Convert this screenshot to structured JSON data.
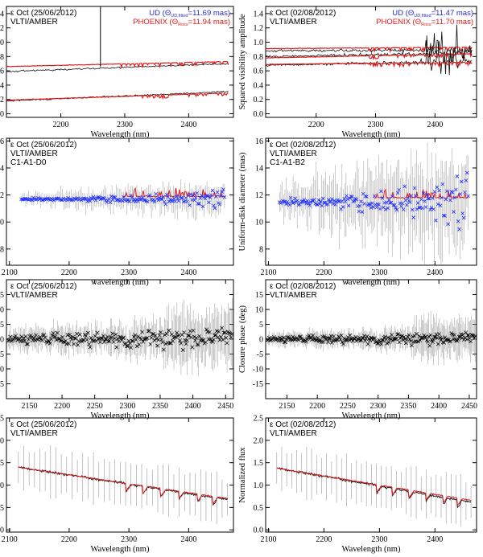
{
  "chart_data": [
    {
      "id": "vis-2012-06-25",
      "type": "line",
      "star_label": "ε Oct (25/06/2012)",
      "instrument": "VLTI/AMBER",
      "legend": [
        {
          "text": "UD (Θ",
          "sub": "UD,fitted",
          "tail": "=11.69 mas)",
          "color": "#2a2ad6"
        },
        {
          "text": "PHOENIX (Θ",
          "sub": "Ross",
          "tail": "=11.94 mas)",
          "color": "#e01818"
        }
      ],
      "xlabel": "Wavelength (nm)",
      "ylabel": "Squared visibility amplitude",
      "xlim": [
        2115,
        2470
      ],
      "ylim": [
        -0.05,
        1.5
      ],
      "xticks": [
        "2200",
        "2300",
        "2400"
      ],
      "yticks": [
        "0.0",
        "0.2",
        "0.4",
        "0.6",
        "0.8",
        "1.0",
        "1.2",
        "1.4"
      ],
      "series": [
        {
          "name": "baseline 1 (data)",
          "start": 0.59,
          "end": 0.7,
          "color": "black"
        },
        {
          "name": "baseline 1 (model)",
          "start": 0.66,
          "end": 0.73,
          "color": "red"
        },
        {
          "name": "baseline 2 (data)",
          "start": 0.18,
          "end": 0.31,
          "color": "black"
        },
        {
          "name": "baseline 2 (model)",
          "start": 0.19,
          "end": 0.29,
          "color": "red"
        }
      ],
      "spike": {
        "x": 2262,
        "y": 1.5
      }
    },
    {
      "id": "vis-2012-08-02",
      "type": "line",
      "star_label": "ε Oct (02/08/2012)",
      "instrument": "VLTI/AMBER",
      "legend": [
        {
          "text": "UD (Θ",
          "sub": "UD,fitted",
          "tail": "=11.47 mas)",
          "color": "#2a2ad6"
        },
        {
          "text": "PHOENIX (Θ",
          "sub": "Ross",
          "tail": "=11.70 mas)",
          "color": "#e01818"
        }
      ],
      "xlabel": "Wavelength (nm)",
      "ylabel": "Squared visibility amplitude",
      "xlim": [
        2115,
        2470
      ],
      "ylim": [
        -0.05,
        1.5
      ],
      "xticks": [
        "2200",
        "2300",
        "2400"
      ],
      "yticks": [
        "0.0",
        "0.2",
        "0.4",
        "0.6",
        "0.8",
        "1.0",
        "1.2",
        "1.4"
      ],
      "series": [
        {
          "name": "baseline 1 (data)",
          "start": 0.88,
          "end": 0.89,
          "color": "black"
        },
        {
          "name": "baseline 1 (model)",
          "start": 0.91,
          "end": 0.93,
          "color": "red"
        },
        {
          "name": "baseline 2 (data)",
          "start": 0.8,
          "end": 0.85,
          "color": "black"
        },
        {
          "name": "baseline 2 (model)",
          "start": 0.78,
          "end": 0.84,
          "color": "red"
        },
        {
          "name": "baseline 3 (data)",
          "start": 0.68,
          "end": 0.73,
          "color": "black"
        },
        {
          "name": "baseline 3 (model)",
          "start": 0.69,
          "end": 0.72,
          "color": "red"
        }
      ]
    },
    {
      "id": "ud-2012-06-25",
      "type": "scatter",
      "star_label": "ε Oct (25/06/2012)",
      "instrument": "VLTI/AMBER",
      "config": "C1-A1-D0",
      "xlabel": "wavelength (nm)",
      "ylabel": "Uniform-disk diameter (mas)",
      "xlim": [
        2095,
        2475
      ],
      "ylim": [
        6.8,
        16.2
      ],
      "xticks": [
        "2100",
        "2200",
        "2300",
        "2400"
      ],
      "yticks": [
        "8",
        "10",
        "12",
        "14",
        "16"
      ],
      "series": [
        {
          "name": "UD diameter",
          "x_from": 2120,
          "x_to": 2460,
          "level": 11.7,
          "scatter": 0.4,
          "color": "blue"
        },
        {
          "name": "PHOENIX",
          "x_from": 2290,
          "x_to": 2460,
          "level": 11.9,
          "color": "red"
        }
      ]
    },
    {
      "id": "ud-2012-08-02",
      "type": "scatter",
      "star_label": "ε Oct (02/08/2012)",
      "instrument": "VLTI/AMBER",
      "config": "C1-A1-B2",
      "xlabel": "wavelength (nm)",
      "ylabel": "Uniform-disk diameter (mas)",
      "xlim": [
        2095,
        2475
      ],
      "ylim": [
        6.8,
        16.2
      ],
      "xticks": [
        "2100",
        "2200",
        "2300",
        "2400"
      ],
      "yticks": [
        "8",
        "10",
        "12",
        "14",
        "16"
      ],
      "series": [
        {
          "name": "UD diameter",
          "x_from": 2120,
          "x_to": 2460,
          "level": 11.5,
          "scatter": 1.2,
          "color": "blue"
        },
        {
          "name": "PHOENIX",
          "x_from": 2290,
          "x_to": 2460,
          "level": 11.8,
          "color": "red"
        }
      ]
    },
    {
      "id": "cp-2012-06-25",
      "type": "scatter",
      "star_label": "ε Oct (25/06/2012)",
      "instrument": "VLTI/AMBER",
      "xlabel": "Wavelength (nm)",
      "ylabel": "Closure phase (deg)",
      "xlim": [
        2115,
        2462
      ],
      "ylim": [
        -20,
        20
      ],
      "xticks": [
        "2150",
        "2200",
        "2250",
        "2300",
        "2350",
        "2400",
        "2450"
      ],
      "yticks": [
        "-15",
        "-10",
        "-5",
        "0",
        "5",
        "10",
        "15"
      ],
      "series": [
        {
          "name": "closure phase",
          "level": 0,
          "scatter": 2.5,
          "color": "black"
        }
      ]
    },
    {
      "id": "cp-2012-08-02",
      "type": "scatter",
      "star_label": "ε Oct (02/08/2012)",
      "instrument": "VLTI/AMBER",
      "xlabel": "Wavelength (nm)",
      "ylabel": "Closure phase (deg)",
      "xlim": [
        2115,
        2462
      ],
      "ylim": [
        -20,
        20
      ],
      "xticks": [
        "2150",
        "2200",
        "2250",
        "2300",
        "2350",
        "2400",
        "2450"
      ],
      "yticks": [
        "-15",
        "-10",
        "-5",
        "0",
        "5",
        "10",
        "15"
      ],
      "series": [
        {
          "name": "closure phase",
          "level": 0,
          "scatter": 1.5,
          "color": "black"
        }
      ]
    },
    {
      "id": "flux-2012-06-25",
      "type": "line",
      "star_label": "ε Oct (25/06/2012)",
      "instrument": "VLTI/AMBER",
      "xlabel": "Wavelength (nm)",
      "ylabel": "Normalized flux",
      "xlim": [
        2095,
        2475
      ],
      "ylim": [
        -0.05,
        2.5
      ],
      "xticks": [
        "2100",
        "2200",
        "2300",
        "2400"
      ],
      "yticks": [
        "0.0",
        "0.5",
        "1.0",
        "1.5",
        "2.0",
        "2.5"
      ],
      "series": [
        {
          "name": "observed spectrum",
          "start": 1.4,
          "end": 0.68,
          "color": "black"
        },
        {
          "name": "PHOENIX",
          "start": 1.4,
          "end": 0.7,
          "color": "red"
        }
      ]
    },
    {
      "id": "flux-2012-08-02",
      "type": "line",
      "star_label": "ε Oct (02/08/2012)",
      "instrument": "VLTI/AMBER",
      "xlabel": "Wavelength (nm)",
      "ylabel": "Normalized flux",
      "xlim": [
        2095,
        2475
      ],
      "ylim": [
        -0.05,
        2.5
      ],
      "xticks": [
        "2100",
        "2200",
        "2300",
        "2400"
      ],
      "yticks": [
        "0.0",
        "0.5",
        "1.0",
        "1.5",
        "2.0",
        "2.5"
      ],
      "series": [
        {
          "name": "observed spectrum",
          "start": 1.38,
          "end": 0.62,
          "color": "black"
        },
        {
          "name": "PHOENIX",
          "start": 1.38,
          "end": 0.66,
          "color": "red"
        }
      ]
    }
  ]
}
